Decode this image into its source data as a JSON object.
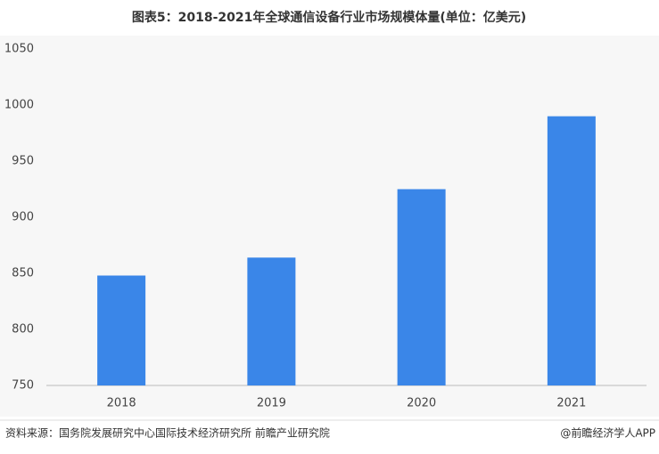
{
  "chart_data": {
    "type": "bar",
    "title": "图表5：2018-2021年全球通信设备行业市场规模体量(单位：亿美元)",
    "categories": [
      "2018",
      "2019",
      "2020",
      "2021"
    ],
    "values": [
      848,
      864,
      925,
      990
    ],
    "color": "#3a86e8",
    "ylim": [
      750,
      1050
    ],
    "yticks": [
      750,
      800,
      850,
      900,
      950,
      1000,
      1050
    ],
    "grid": false
  },
  "footer": {
    "source": "资料来源：国务院发展研究中心国际技术经济研究所 前瞻产业研究院",
    "credit": "@前瞻经济学人APP"
  }
}
